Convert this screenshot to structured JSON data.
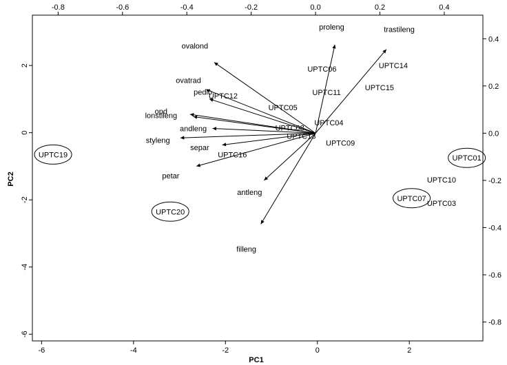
{
  "chart_data": {
    "type": "biplot",
    "xlabel": "PC1",
    "ylabel": "PC2",
    "xlim": [
      -6.2,
      3.6
    ],
    "ylim": [
      -6.2,
      3.5
    ],
    "xticks": [
      -6,
      -4,
      -2,
      0,
      2
    ],
    "yticks": [
      -6,
      -4,
      -2,
      0,
      2
    ],
    "top_xlim": [
      -0.88,
      0.52
    ],
    "top_xticks": [
      -0.8,
      -0.6,
      -0.4,
      -0.2,
      0.0,
      0.2,
      0.4
    ],
    "right_ylim": [
      -0.88,
      0.5
    ],
    "right_yticks": [
      -0.8,
      -0.6,
      -0.4,
      -0.2,
      0.0,
      0.2,
      0.4
    ],
    "points": [
      {
        "label": "UPTC01",
        "x": 3.25,
        "y": -0.75,
        "circled": true
      },
      {
        "label": "UPTC03",
        "x": 2.7,
        "y": -2.1,
        "circled": false
      },
      {
        "label": "UPTC04",
        "x": 0.25,
        "y": 0.3,
        "circled": false
      },
      {
        "label": "UPTC05",
        "x": -0.75,
        "y": 0.75,
        "circled": false
      },
      {
        "label": "UPTC06",
        "x": 0.1,
        "y": 1.9,
        "circled": false
      },
      {
        "label": "UPTC07",
        "x": 2.05,
        "y": -1.95,
        "circled": true
      },
      {
        "label": "UPTC08",
        "x": -0.6,
        "y": 0.15,
        "circled": false
      },
      {
        "label": "UPTC09",
        "x": 0.5,
        "y": -0.3,
        "circled": false
      },
      {
        "label": "UPTC10",
        "x": 2.7,
        "y": -1.4,
        "circled": false
      },
      {
        "label": "UPTC11",
        "x": 0.2,
        "y": 1.2,
        "circled": false
      },
      {
        "label": "UPTC12",
        "x": -2.05,
        "y": 1.1,
        "circled": false
      },
      {
        "label": "UPTC13",
        "x": -0.35,
        "y": -0.1,
        "circled": false
      },
      {
        "label": "UPTC14",
        "x": 1.65,
        "y": 2.0,
        "circled": false
      },
      {
        "label": "UPTC15",
        "x": 1.35,
        "y": 1.35,
        "circled": false
      },
      {
        "label": "UPTC16",
        "x": -1.85,
        "y": -0.65,
        "circled": false
      },
      {
        "label": "UPTC19",
        "x": -5.75,
        "y": -0.65,
        "circled": true
      },
      {
        "label": "UPTC20",
        "x": -3.2,
        "y": -2.35,
        "circled": true
      }
    ],
    "loadings": [
      {
        "label": "proleng",
        "x": 0.06,
        "y": 0.375,
        "lx": 0.05,
        "ly": 0.45
      },
      {
        "label": "trastileng",
        "x": 0.22,
        "y": 0.355,
        "lx": 0.26,
        "ly": 0.44
      },
      {
        "label": "ovalond",
        "x": -0.315,
        "y": 0.3,
        "lx": -0.375,
        "ly": 0.37
      },
      {
        "label": "ovatrad",
        "x": -0.34,
        "y": 0.185,
        "lx": -0.395,
        "ly": 0.225
      },
      {
        "label": "pedlo",
        "x": -0.33,
        "y": 0.145,
        "lx": -0.35,
        "ly": 0.175
      },
      {
        "label": "opd",
        "x": -0.39,
        "y": 0.08,
        "lx": -0.48,
        "ly": 0.093
      },
      {
        "label": "lonstileng",
        "x": -0.38,
        "y": 0.07,
        "lx": -0.48,
        "ly": 0.075
      },
      {
        "label": "andleng",
        "x": -0.32,
        "y": 0.02,
        "lx": -0.38,
        "ly": 0.02
      },
      {
        "label": "styleng",
        "x": -0.42,
        "y": -0.02,
        "lx": -0.49,
        "ly": -0.03
      },
      {
        "label": "separ",
        "x": -0.29,
        "y": -0.05,
        "lx": -0.36,
        "ly": -0.06
      },
      {
        "label": "petar",
        "x": -0.37,
        "y": -0.14,
        "lx": -0.45,
        "ly": -0.18
      },
      {
        "label": "antleng",
        "x": -0.16,
        "y": -0.2,
        "lx": -0.205,
        "ly": -0.25
      },
      {
        "label": "filleng",
        "x": -0.17,
        "y": -0.385,
        "lx": -0.215,
        "ly": -0.49
      }
    ]
  }
}
